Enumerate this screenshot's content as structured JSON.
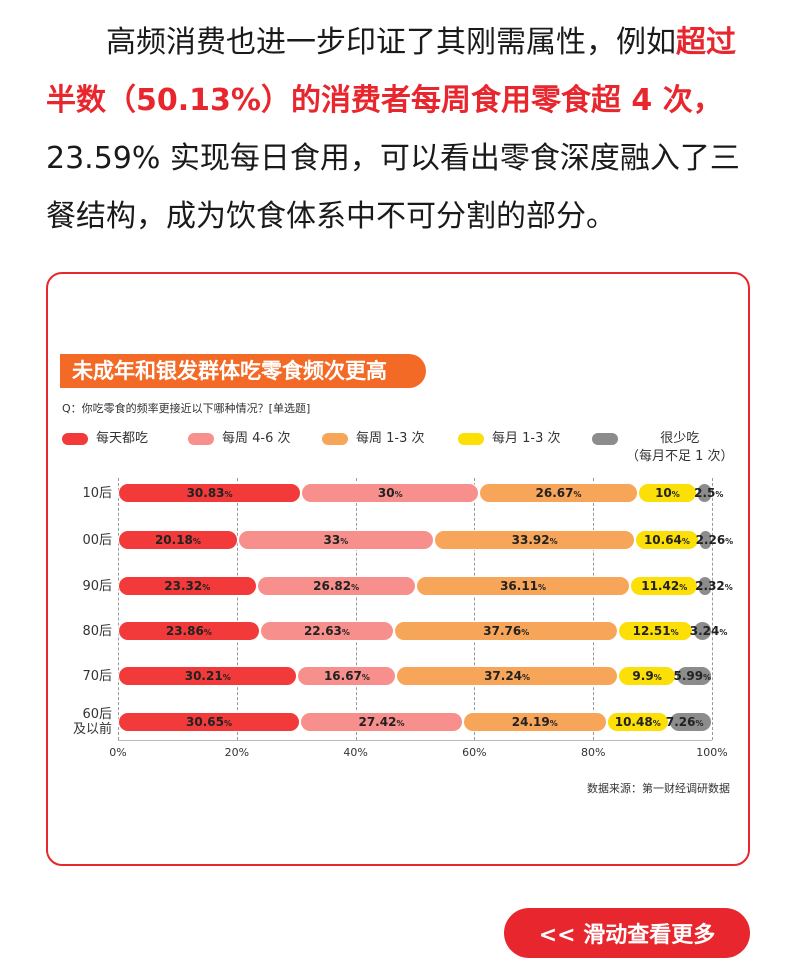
{
  "intro": {
    "part1": "高频消费也进一步印证了其刚需属性，例如",
    "highlight": "超过半数（50.13%）的消费者每周食用零食超 4 次，",
    "part2": "23.59% 实现每日食用，可以看出零食深度融入了三餐结构，成为饮食体系中不可分割的部分。"
  },
  "chart_card": {
    "banner": "未成年和银发群体吃零食频次更高",
    "question": "Q：你吃零食的频率更接近以下哪种情况？[单选题]",
    "source": "数据来源：第一财经调研数据"
  },
  "colors": {
    "accent": "#e8262d",
    "banner": "#f26a25",
    "series": [
      "#f23a3a",
      "#f7908d",
      "#f7a559",
      "#fbdf06",
      "#8c8c8c"
    ]
  },
  "chart_data": {
    "type": "bar",
    "orientation": "horizontal-stacked-100",
    "categories": [
      "10后",
      "00后",
      "90后",
      "80后",
      "70后",
      "60后\n及以前"
    ],
    "series": [
      {
        "name": "每天都吃",
        "values": [
          30.83,
          20.18,
          23.32,
          23.86,
          30.21,
          30.65
        ]
      },
      {
        "name": "每周 4-6 次",
        "values": [
          30,
          33,
          26.82,
          22.63,
          16.67,
          27.42
        ]
      },
      {
        "name": "每周 1-3 次",
        "values": [
          26.67,
          33.92,
          36.11,
          37.76,
          37.24,
          24.19
        ]
      },
      {
        "name": "每月 1-3 次",
        "values": [
          10,
          10.64,
          11.42,
          12.51,
          9.9,
          10.48
        ]
      },
      {
        "name": "很少吃\n（每月不足 1 次）",
        "values": [
          2.5,
          2.26,
          2.32,
          3.24,
          5.99,
          7.26
        ]
      }
    ],
    "x_ticks": [
      "0%",
      "20%",
      "40%",
      "60%",
      "80%",
      "100%"
    ],
    "xlim": [
      0,
      100
    ],
    "value_suffix": "%",
    "grid": true,
    "legend": "top"
  },
  "button": {
    "label": "<< 滑动查看更多"
  }
}
